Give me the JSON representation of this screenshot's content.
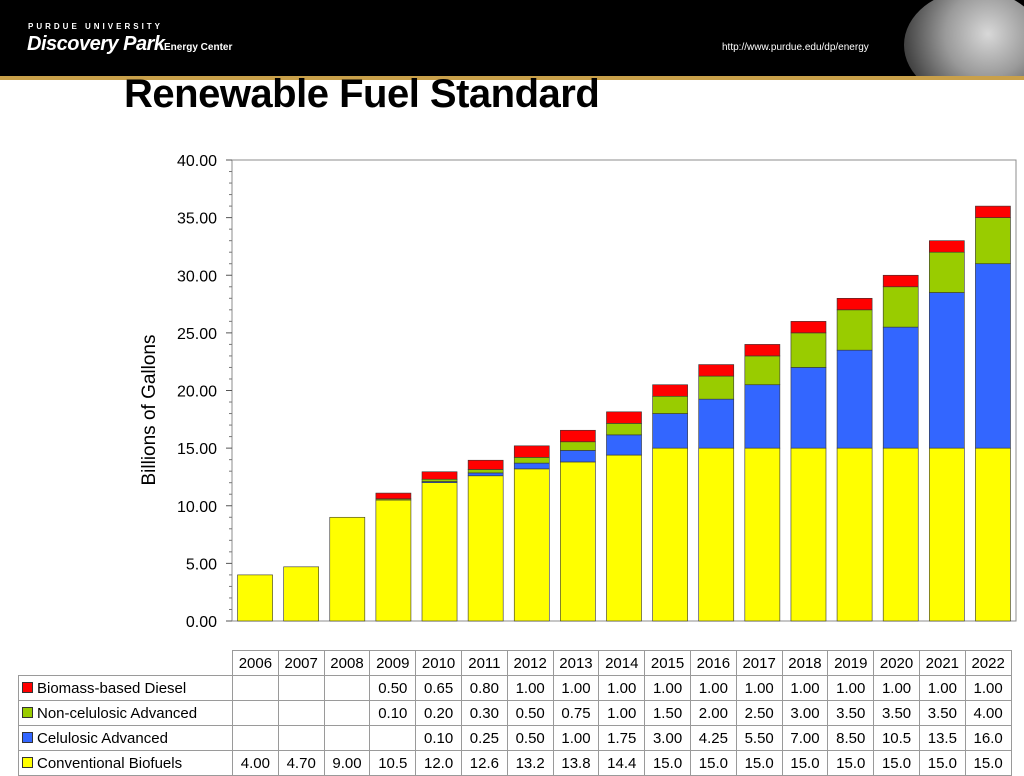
{
  "header": {
    "logo_top": "PURDUE UNIVERSITY",
    "logo_main": "Discovery Park",
    "logo_sub": "Energy Center",
    "url": "http://www.purdue.edu/dp/energy"
  },
  "chart_data": {
    "type": "bar",
    "stacked": true,
    "title": "Renewable Fuel Standard",
    "ylabel": "Billions of Gallons",
    "xlabel": "",
    "ylim": [
      0,
      40
    ],
    "yticks": [
      "0.00",
      "5.00",
      "10.00",
      "15.00",
      "20.00",
      "25.00",
      "30.00",
      "35.00",
      "40.00"
    ],
    "grid": false,
    "legend": "data-table",
    "categories": [
      "2006",
      "2007",
      "2008",
      "2009",
      "2010",
      "2011",
      "2012",
      "2013",
      "2014",
      "2015",
      "2016",
      "2017",
      "2018",
      "2019",
      "2020",
      "2021",
      "2022"
    ],
    "series": [
      {
        "name": "Conventional Biofuels",
        "color": "#ffff00",
        "values": [
          4.0,
          4.7,
          9.0,
          10.5,
          12.0,
          12.6,
          13.2,
          13.8,
          14.4,
          15.0,
          15.0,
          15.0,
          15.0,
          15.0,
          15.0,
          15.0,
          15.0
        ],
        "labels": [
          "4.00",
          "4.70",
          "9.00",
          "10.5",
          "12.0",
          "12.6",
          "13.2",
          "13.8",
          "14.4",
          "15.0",
          "15.0",
          "15.0",
          "15.0",
          "15.0",
          "15.0",
          "15.0",
          "15.0"
        ]
      },
      {
        "name": "Celulosic Advanced",
        "color": "#3366ff",
        "values": [
          0,
          0,
          0,
          0,
          0.1,
          0.25,
          0.5,
          1.0,
          1.75,
          3.0,
          4.25,
          5.5,
          7.0,
          8.5,
          10.5,
          13.5,
          16.0
        ],
        "labels": [
          "",
          "",
          "",
          "",
          "0.10",
          "0.25",
          "0.50",
          "1.00",
          "1.75",
          "3.00",
          "4.25",
          "5.50",
          "7.00",
          "8.50",
          "10.5",
          "13.5",
          "16.0"
        ]
      },
      {
        "name": "Non-celulosic Advanced",
        "color": "#99cc00",
        "values": [
          0,
          0,
          0,
          0.1,
          0.2,
          0.3,
          0.5,
          0.75,
          1.0,
          1.5,
          2.0,
          2.5,
          3.0,
          3.5,
          3.5,
          3.5,
          4.0
        ],
        "labels": [
          "",
          "",
          "",
          "0.10",
          "0.20",
          "0.30",
          "0.50",
          "0.75",
          "1.00",
          "1.50",
          "2.00",
          "2.50",
          "3.00",
          "3.50",
          "3.50",
          "3.50",
          "4.00"
        ]
      },
      {
        "name": "Biomass-based Diesel",
        "color": "#ff0000",
        "values": [
          0,
          0,
          0,
          0.5,
          0.65,
          0.8,
          1.0,
          1.0,
          1.0,
          1.0,
          1.0,
          1.0,
          1.0,
          1.0,
          1.0,
          1.0,
          1.0
        ],
        "labels": [
          "",
          "",
          "",
          "0.50",
          "0.65",
          "0.80",
          "1.00",
          "1.00",
          "1.00",
          "1.00",
          "1.00",
          "1.00",
          "1.00",
          "1.00",
          "1.00",
          "1.00",
          "1.00"
        ]
      }
    ],
    "table_row_order": [
      "Biomass-based Diesel",
      "Non-celulosic Advanced",
      "Celulosic Advanced",
      "Conventional Biofuels"
    ]
  }
}
